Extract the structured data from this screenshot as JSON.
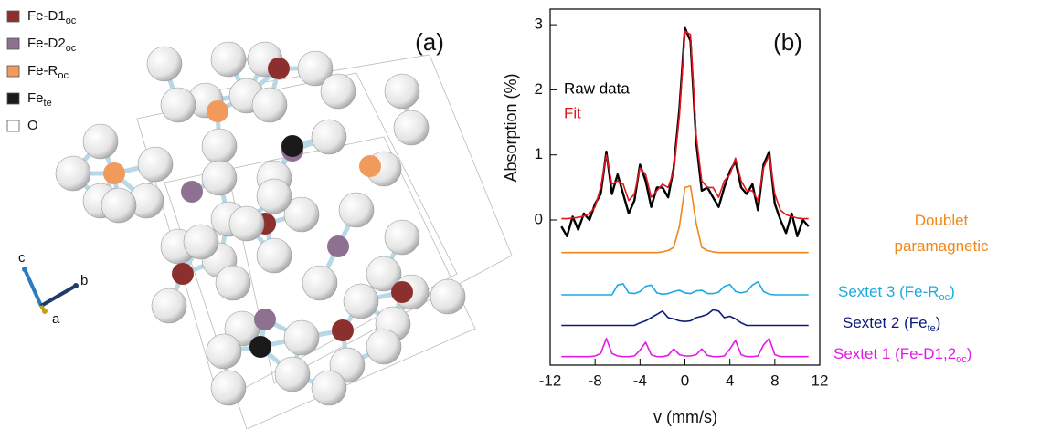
{
  "panel_a": {
    "label": "(a)",
    "legend": [
      {
        "name": [
          "Fe-D1",
          "oc"
        ],
        "color": "#8c2f2f"
      },
      {
        "name": [
          "Fe-D2",
          "oc"
        ],
        "color": "#8e7190"
      },
      {
        "name": [
          "Fe-R",
          "oc"
        ],
        "color": "#f29a5c"
      },
      {
        "name": [
          "Fe",
          "te"
        ],
        "color": "#1a1a1a"
      },
      {
        "name": [
          "O"
        ],
        "color": "#ffffff"
      }
    ],
    "axes": [
      "c",
      "b",
      "a"
    ]
  },
  "chart_data": {
    "type": "line",
    "label": "(b)",
    "x_label": "v (mm/s)",
    "y_label": "Absorption (%)",
    "xlim": [
      -12,
      12
    ],
    "xticks": [
      -12,
      -8,
      -4,
      0,
      4,
      8,
      12
    ],
    "ylim": [
      -2.23,
      3.24
    ],
    "yticks": [
      0,
      1,
      2,
      3
    ],
    "x": [
      -11,
      -10.5,
      -10,
      -9.5,
      -9,
      -8.5,
      -8,
      -7.5,
      -7,
      -6.5,
      -6,
      -5.5,
      -5,
      -4.5,
      -4,
      -3.5,
      -3,
      -2.5,
      -2,
      -1.5,
      -1,
      -0.5,
      0,
      0.5,
      1,
      1.5,
      2,
      2.5,
      3,
      3.5,
      4,
      4.5,
      5,
      5.5,
      6,
      6.5,
      7,
      7.5,
      8,
      8.5,
      9,
      9.5,
      10,
      10.5,
      11
    ],
    "series": [
      {
        "name": "Raw data",
        "color": "#000000",
        "values": [
          -0.1,
          -0.25,
          0.05,
          -0.15,
          0.1,
          0.0,
          0.25,
          0.4,
          1.05,
          0.4,
          0.7,
          0.4,
          0.1,
          0.3,
          0.85,
          0.6,
          0.2,
          0.5,
          0.5,
          0.35,
          0.8,
          1.7,
          2.95,
          2.75,
          1.2,
          0.45,
          0.5,
          0.35,
          0.2,
          0.5,
          0.75,
          0.9,
          0.5,
          0.4,
          0.55,
          0.15,
          0.85,
          1.05,
          0.25,
          0.0,
          -0.2,
          0.1,
          -0.25,
          0.0,
          -0.1
        ]
      },
      {
        "name": "Fit",
        "color": "#e8141c",
        "values": [
          0.02,
          0.02,
          0.03,
          0.04,
          0.06,
          0.1,
          0.2,
          0.5,
          1.0,
          0.55,
          0.6,
          0.55,
          0.3,
          0.4,
          0.8,
          0.7,
          0.35,
          0.45,
          0.55,
          0.5,
          0.75,
          1.6,
          2.9,
          2.85,
          1.3,
          0.6,
          0.5,
          0.5,
          0.35,
          0.6,
          0.7,
          0.95,
          0.6,
          0.45,
          0.45,
          0.3,
          0.8,
          1.0,
          0.4,
          0.15,
          0.08,
          0.05,
          0.03,
          0.02,
          0.02
        ]
      },
      {
        "name": "Doublet paramagnetic",
        "color": "#f0871a",
        "values": [
          -0.5,
          -0.5,
          -0.5,
          -0.5,
          -0.5,
          -0.5,
          -0.5,
          -0.5,
          -0.5,
          -0.5,
          -0.5,
          -0.5,
          -0.5,
          -0.5,
          -0.5,
          -0.5,
          -0.5,
          -0.5,
          -0.49,
          -0.47,
          -0.42,
          -0.1,
          0.5,
          0.52,
          -0.05,
          -0.42,
          -0.47,
          -0.49,
          -0.5,
          -0.5,
          -0.5,
          -0.5,
          -0.5,
          -0.5,
          -0.5,
          -0.5,
          -0.5,
          -0.5,
          -0.5,
          -0.5,
          -0.5,
          -0.5,
          -0.5,
          -0.5,
          -0.5
        ]
      },
      {
        "name": [
          "Sextet 3 (Fe-R",
          "oc",
          ")"
        ],
        "color": "#1aa9e1",
        "values": [
          -1.15,
          -1.15,
          -1.15,
          -1.15,
          -1.15,
          -1.15,
          -1.15,
          -1.15,
          -1.15,
          -1.15,
          -1.0,
          -0.98,
          -1.12,
          -1.13,
          -1.1,
          -1.02,
          -1.0,
          -1.12,
          -1.14,
          -1.13,
          -1.1,
          -1.08,
          -1.12,
          -1.13,
          -1.09,
          -1.08,
          -1.13,
          -1.13,
          -1.11,
          -1.02,
          -0.99,
          -1.1,
          -1.12,
          -1.1,
          -1.0,
          -0.95,
          -1.1,
          -1.14,
          -1.15,
          -1.15,
          -1.15,
          -1.15,
          -1.15,
          -1.15,
          -1.15
        ]
      },
      {
        "name": [
          "Sextet 2 (Fe",
          "te",
          ")"
        ],
        "color": "#0b1b7c",
        "values": [
          -1.62,
          -1.62,
          -1.62,
          -1.62,
          -1.62,
          -1.62,
          -1.62,
          -1.62,
          -1.62,
          -1.62,
          -1.62,
          -1.62,
          -1.62,
          -1.62,
          -1.58,
          -1.55,
          -1.5,
          -1.45,
          -1.4,
          -1.5,
          -1.52,
          -1.55,
          -1.56,
          -1.55,
          -1.5,
          -1.48,
          -1.45,
          -1.38,
          -1.4,
          -1.5,
          -1.48,
          -1.52,
          -1.58,
          -1.62,
          -1.62,
          -1.62,
          -1.62,
          -1.62,
          -1.62,
          -1.62,
          -1.62,
          -1.62,
          -1.62,
          -1.62,
          -1.62
        ]
      },
      {
        "name": [
          "Sextet 1 (Fe-D1,2",
          "oc",
          ")"
        ],
        "color": "#e41ae4",
        "values": [
          -2.1,
          -2.1,
          -2.1,
          -2.1,
          -2.1,
          -2.1,
          -2.09,
          -2.05,
          -1.82,
          -2.05,
          -2.09,
          -2.1,
          -2.1,
          -2.09,
          -2.0,
          -1.88,
          -2.07,
          -2.1,
          -2.1,
          -2.08,
          -1.98,
          -2.07,
          -2.09,
          -2.09,
          -2.07,
          -1.98,
          -2.08,
          -2.1,
          -2.1,
          -2.09,
          -1.98,
          -1.85,
          -2.07,
          -2.1,
          -2.1,
          -2.09,
          -1.92,
          -1.82,
          -2.07,
          -2.1,
          -2.1,
          -2.1,
          -2.1,
          -2.1,
          -2.1
        ]
      }
    ]
  }
}
